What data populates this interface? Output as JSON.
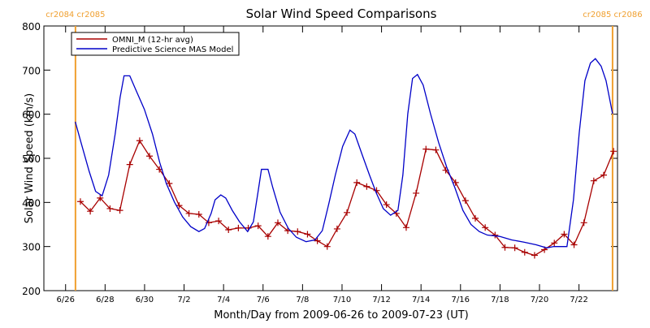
{
  "chart_data": {
    "type": "line",
    "title": "Solar Wind Speed Comparisons",
    "x_label": "Month/Day from 2009-06-26 to 2009-07-23 (UT)",
    "y_label": "Solar Wind Speed (km/s)",
    "xlim": [
      -1.1,
      27.95
    ],
    "ylim": [
      200,
      800
    ],
    "xticks": [
      {
        "value": 0,
        "label": "6/26"
      },
      {
        "value": 2,
        "label": "6/28"
      },
      {
        "value": 4,
        "label": "6/30"
      },
      {
        "value": 6,
        "label": "7/2"
      },
      {
        "value": 8,
        "label": "7/4"
      },
      {
        "value": 10,
        "label": "7/6"
      },
      {
        "value": 12,
        "label": "7/8"
      },
      {
        "value": 14,
        "label": "7/10"
      },
      {
        "value": 16,
        "label": "7/12"
      },
      {
        "value": 18,
        "label": "7/14"
      },
      {
        "value": 20,
        "label": "7/16"
      },
      {
        "value": 22,
        "label": "7/18"
      },
      {
        "value": 24,
        "label": "7/20"
      },
      {
        "value": 26,
        "label": "7/22"
      }
    ],
    "yticks": [
      200,
      300,
      400,
      500,
      600,
      700,
      800
    ],
    "legend": "top-left",
    "markers": [
      {
        "x": 0.5,
        "label": "cr2084 cr2085",
        "color": "#f0a030"
      },
      {
        "x": 27.7,
        "label": "cr2085 cr2086",
        "color": "#f0a030"
      }
    ],
    "series": [
      {
        "name": "OMNI_M (12-hr avg)",
        "color": "#a80000",
        "marker": "plus",
        "x": [
          0.75,
          1.25,
          1.75,
          2.25,
          2.75,
          3.25,
          3.75,
          4.25,
          4.75,
          5.25,
          5.75,
          6.25,
          6.75,
          7.25,
          7.75,
          8.25,
          8.75,
          9.25,
          9.75,
          10.25,
          10.75,
          11.25,
          11.75,
          12.25,
          12.75,
          13.25,
          13.75,
          14.25,
          14.75,
          15.25,
          15.75,
          16.25,
          16.75,
          17.25,
          17.75,
          18.25,
          18.75,
          19.25,
          19.75,
          20.25,
          20.75,
          21.25,
          21.75,
          22.25,
          22.75,
          23.25,
          23.75,
          24.25,
          24.75,
          25.25,
          25.75,
          26.25,
          26.75,
          27.25,
          27.75
        ],
        "values": [
          402,
          380,
          410,
          386,
          382,
          486,
          540,
          505,
          475,
          443,
          393,
          375,
          373,
          354,
          358,
          338,
          342,
          342,
          347,
          323,
          354,
          336,
          334,
          328,
          313,
          300,
          340,
          377,
          445,
          436,
          427,
          395,
          375,
          343,
          421,
          521,
          519,
          473,
          445,
          404,
          364,
          343,
          326,
          298,
          297,
          287,
          280,
          293,
          308,
          328,
          304,
          354,
          449,
          462,
          516
        ]
      },
      {
        "name": "Predictive Science MAS Model",
        "color": "#0000c8",
        "marker": "none",
        "x": [
          0.49,
          0.78,
          1.19,
          1.52,
          1.85,
          2.18,
          2.51,
          2.76,
          2.96,
          3.25,
          3.54,
          3.99,
          4.4,
          4.77,
          5.1,
          5.51,
          5.93,
          6.34,
          6.75,
          7.04,
          7.37,
          7.57,
          7.86,
          8.11,
          8.44,
          8.81,
          9.22,
          9.51,
          9.75,
          9.92,
          10.25,
          10.49,
          10.86,
          11.28,
          11.69,
          12.18,
          12.63,
          13.0,
          13.33,
          13.66,
          14.03,
          14.4,
          14.65,
          15.02,
          15.39,
          15.72,
          16.09,
          16.46,
          16.83,
          17.08,
          17.33,
          17.57,
          17.82,
          18.11,
          18.48,
          18.89,
          19.3,
          19.71,
          20.12,
          20.53,
          20.95,
          21.36,
          21.98,
          22.59,
          23.21,
          23.83,
          24.36,
          24.73,
          25.39,
          25.72,
          26.01,
          26.3,
          26.58,
          26.83,
          27.12,
          27.37,
          27.7
        ],
        "values": [
          583,
          536,
          471,
          425,
          415,
          462,
          555,
          638,
          687,
          687,
          657,
          611,
          555,
          490,
          443,
          401,
          367,
          345,
          334,
          341,
          375,
          406,
          417,
          410,
          382,
          356,
          334,
          356,
          425,
          475,
          475,
          434,
          378,
          341,
          321,
          311,
          315,
          336,
          397,
          462,
          527,
          564,
          555,
          508,
          462,
          423,
          386,
          371,
          382,
          462,
          601,
          681,
          690,
          666,
          601,
          536,
          480,
          434,
          382,
          350,
          334,
          326,
          323,
          315,
          310,
          304,
          297,
          300,
          300,
          406,
          557,
          676,
          716,
          726,
          709,
          676,
          601
        ]
      }
    ]
  }
}
